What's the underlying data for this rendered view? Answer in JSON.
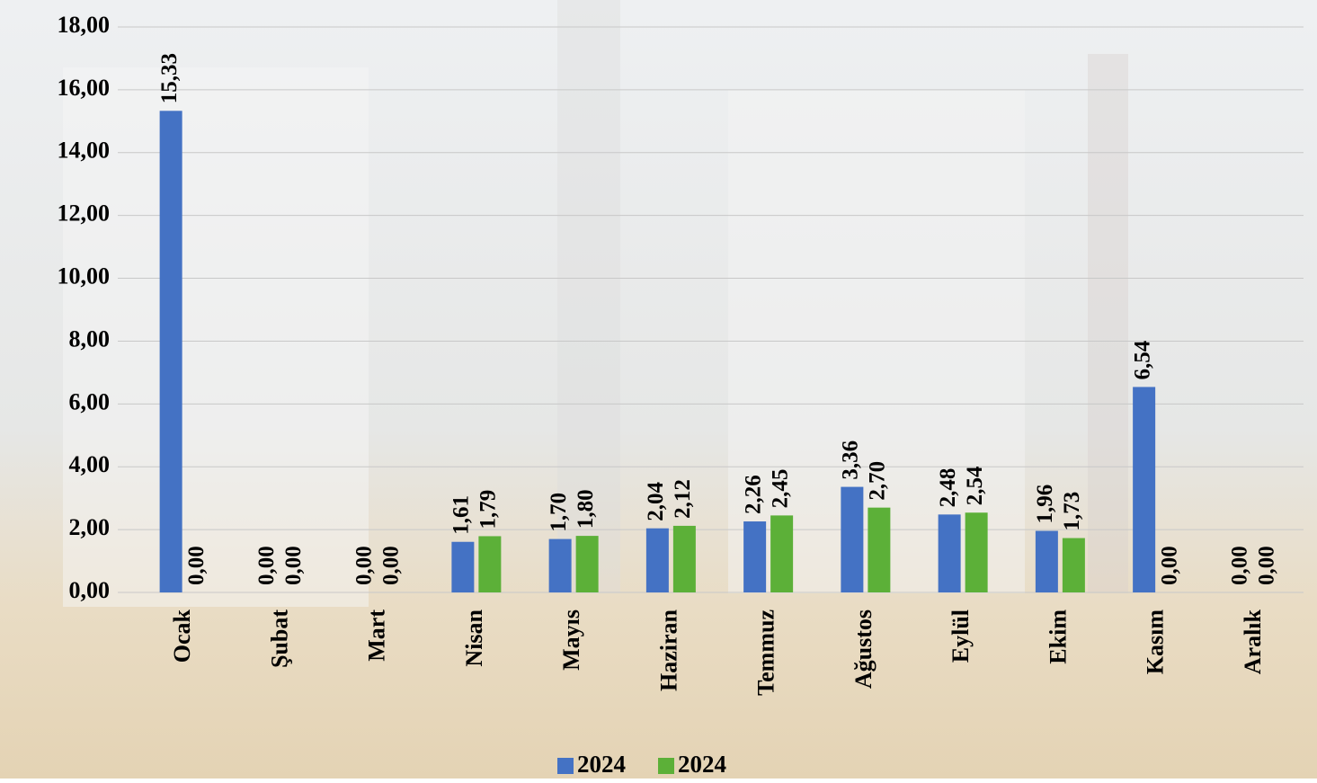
{
  "chart_data": {
    "type": "bar",
    "categories": [
      "Ocak",
      "Şubat",
      "Mart",
      "Nisan",
      "Mayıs",
      "Haziran",
      "Temmuz",
      "Ağustos",
      "Eylül",
      "Ekim",
      "Kasım",
      "Aralık"
    ],
    "series": [
      {
        "name": "2024",
        "color": "#4472c4",
        "values": [
          15.33,
          0,
          0,
          1.61,
          1.7,
          2.04,
          2.26,
          3.36,
          2.48,
          1.96,
          6.54,
          0
        ],
        "value_labels": [
          "15,33",
          "0,00",
          "0,00",
          "1,61",
          "1,70",
          "2,04",
          "2,26",
          "3,36",
          "2,48",
          "1,96",
          "6,54",
          "0,00"
        ]
      },
      {
        "name": "2024",
        "color": "#5cb038",
        "values": [
          0,
          0,
          0,
          1.79,
          1.8,
          2.12,
          2.45,
          2.7,
          2.54,
          1.73,
          0,
          0
        ],
        "value_labels": [
          "0,00",
          "0,00",
          "0,00",
          "1,79",
          "1,80",
          "2,12",
          "2,45",
          "2,70",
          "2,54",
          "1,73",
          "0,00",
          "0,00"
        ]
      }
    ],
    "ylim": [
      0,
      18
    ],
    "yticks": [
      {
        "value": 0,
        "label": "0,00"
      },
      {
        "value": 2,
        "label": "2,00"
      },
      {
        "value": 4,
        "label": "4,00"
      },
      {
        "value": 6,
        "label": "6,00"
      },
      {
        "value": 8,
        "label": "8,00"
      },
      {
        "value": 10,
        "label": "10,00"
      },
      {
        "value": 12,
        "label": "12,00"
      },
      {
        "value": 14,
        "label": "14,00"
      },
      {
        "value": 16,
        "label": "16,00"
      },
      {
        "value": 18,
        "label": "18,00"
      }
    ],
    "grid": true,
    "legend": "bottom"
  }
}
